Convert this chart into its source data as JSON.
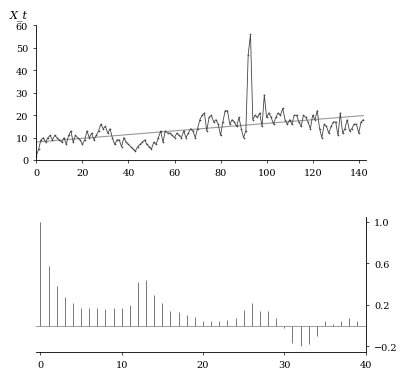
{
  "ts_ylabel": "X_t",
  "ts_xlim": [
    0,
    143
  ],
  "ts_ylim": [
    0,
    60
  ],
  "ts_yticks": [
    0,
    10,
    20,
    30,
    40,
    50,
    60
  ],
  "ts_xticks": [
    0,
    20,
    40,
    60,
    80,
    100,
    120,
    140
  ],
  "acf_xlim": [
    -0.5,
    40
  ],
  "acf_ylim": [
    -0.25,
    1.05
  ],
  "acf_yticks": [
    -0.2,
    0.2,
    0.6,
    1.0
  ],
  "acf_xticks": [
    0,
    10,
    20,
    30,
    40
  ],
  "line_color": "#444444",
  "trend_color": "#999999",
  "acf_color": "#777777",
  "background": "#ffffff",
  "ts_data": [
    2,
    5,
    9,
    10,
    8,
    10,
    11,
    9,
    11,
    10,
    9,
    8,
    10,
    7,
    11,
    13,
    8,
    11,
    10,
    9,
    7,
    9,
    13,
    10,
    12,
    9,
    11,
    13,
    16,
    14,
    15,
    12,
    14,
    10,
    7,
    9,
    9,
    6,
    10,
    8,
    7,
    6,
    5,
    4,
    6,
    7,
    8,
    9,
    7,
    6,
    5,
    8,
    7,
    10,
    13,
    8,
    13,
    12,
    12,
    11,
    10,
    12,
    11,
    10,
    13,
    10,
    12,
    14,
    13,
    10,
    14,
    18,
    20,
    21,
    13,
    19,
    20,
    17,
    18,
    16,
    11,
    17,
    22,
    22,
    16,
    18,
    17,
    15,
    19,
    14,
    10,
    13,
    47,
    56,
    18,
    20,
    19,
    21,
    15,
    29,
    19,
    21,
    19,
    16,
    19,
    21,
    20,
    23,
    18,
    16,
    18,
    16,
    20,
    20,
    17,
    15,
    20,
    19,
    17,
    14,
    20,
    18,
    22,
    14,
    10,
    16,
    15,
    12,
    15,
    17,
    17,
    11,
    21,
    12,
    14,
    18,
    13,
    14,
    16,
    16,
    12,
    17,
    18
  ],
  "acf_values": [
    1.0,
    0.58,
    0.38,
    0.28,
    0.22,
    0.17,
    0.17,
    0.17,
    0.16,
    0.17,
    0.17,
    0.2,
    0.42,
    0.44,
    0.3,
    0.22,
    0.14,
    0.13,
    0.1,
    0.08,
    0.05,
    0.05,
    0.05,
    0.06,
    0.07,
    0.15,
    0.22,
    0.14,
    0.14,
    0.07,
    -0.02,
    -0.17,
    -0.2,
    -0.18,
    -0.1,
    0.05,
    0.02,
    0.05,
    0.07,
    0.05,
    0.03
  ]
}
